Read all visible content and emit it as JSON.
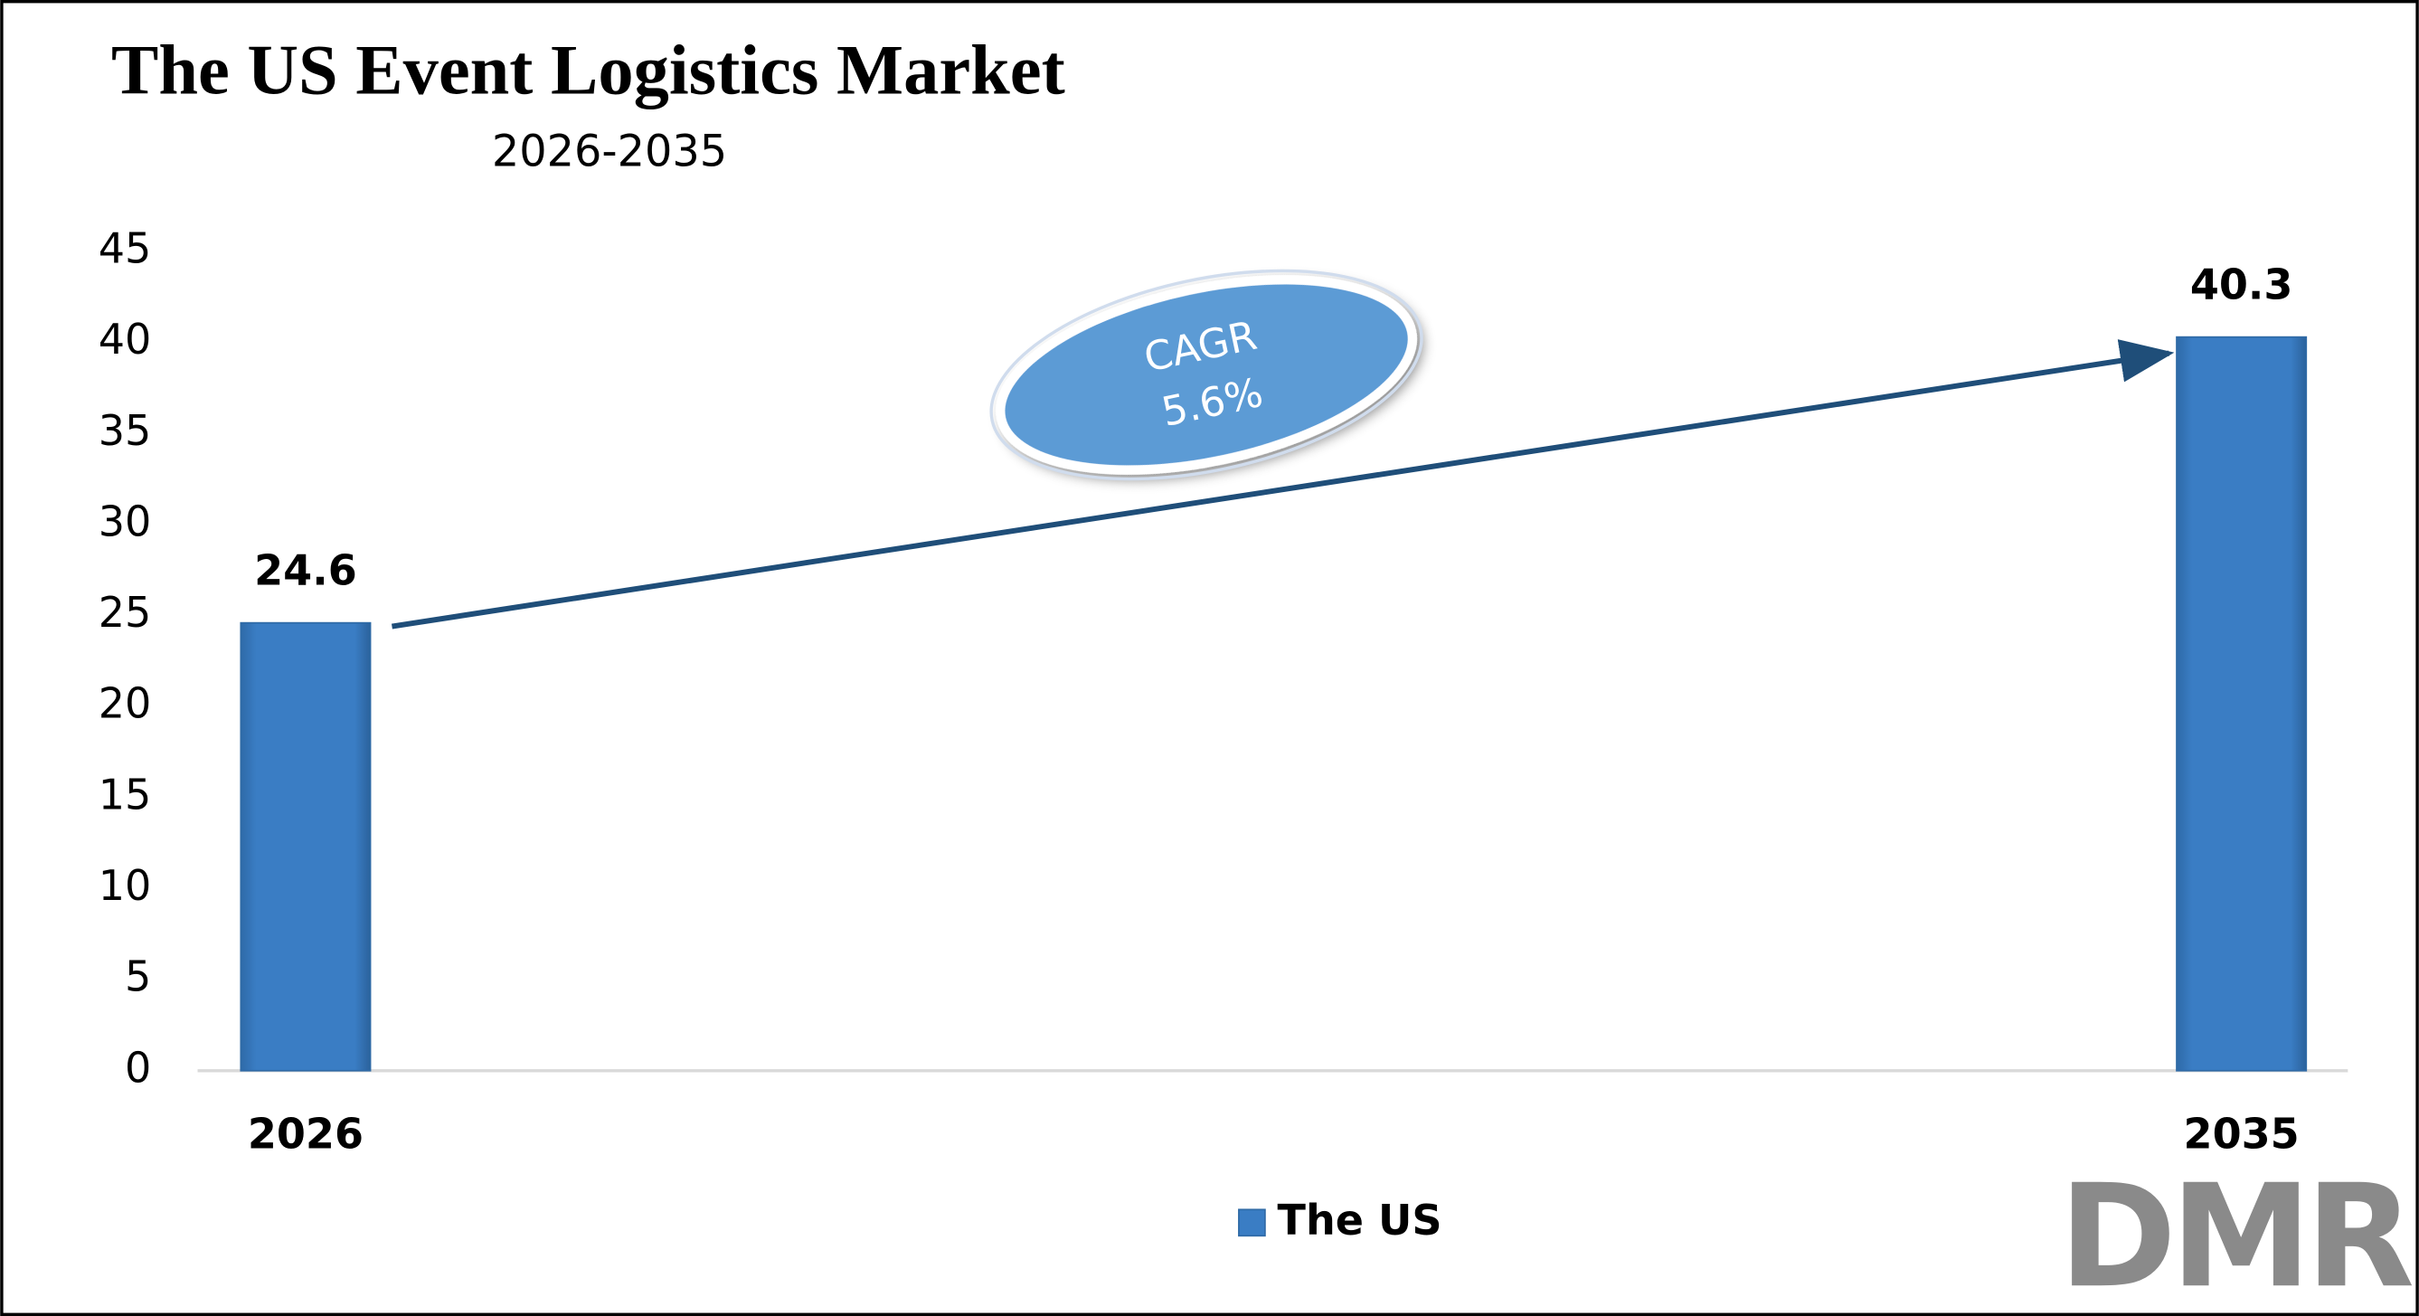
{
  "chart_data": {
    "type": "bar",
    "title": "The US Event Logistics Market",
    "subtitle": "2026-2035",
    "categories": [
      "2026",
      "2035"
    ],
    "series": [
      {
        "name": "The US",
        "color": "#3a7dc4",
        "values": [
          24.6,
          40.3
        ]
      }
    ],
    "ylim": [
      0,
      45
    ],
    "yticks": [
      0,
      5,
      10,
      15,
      20,
      25,
      30,
      35,
      40,
      45
    ],
    "grid": false,
    "legend": "bottom",
    "annotation": [
      "CAGR",
      "5.6%"
    ],
    "logo": "DMR"
  }
}
